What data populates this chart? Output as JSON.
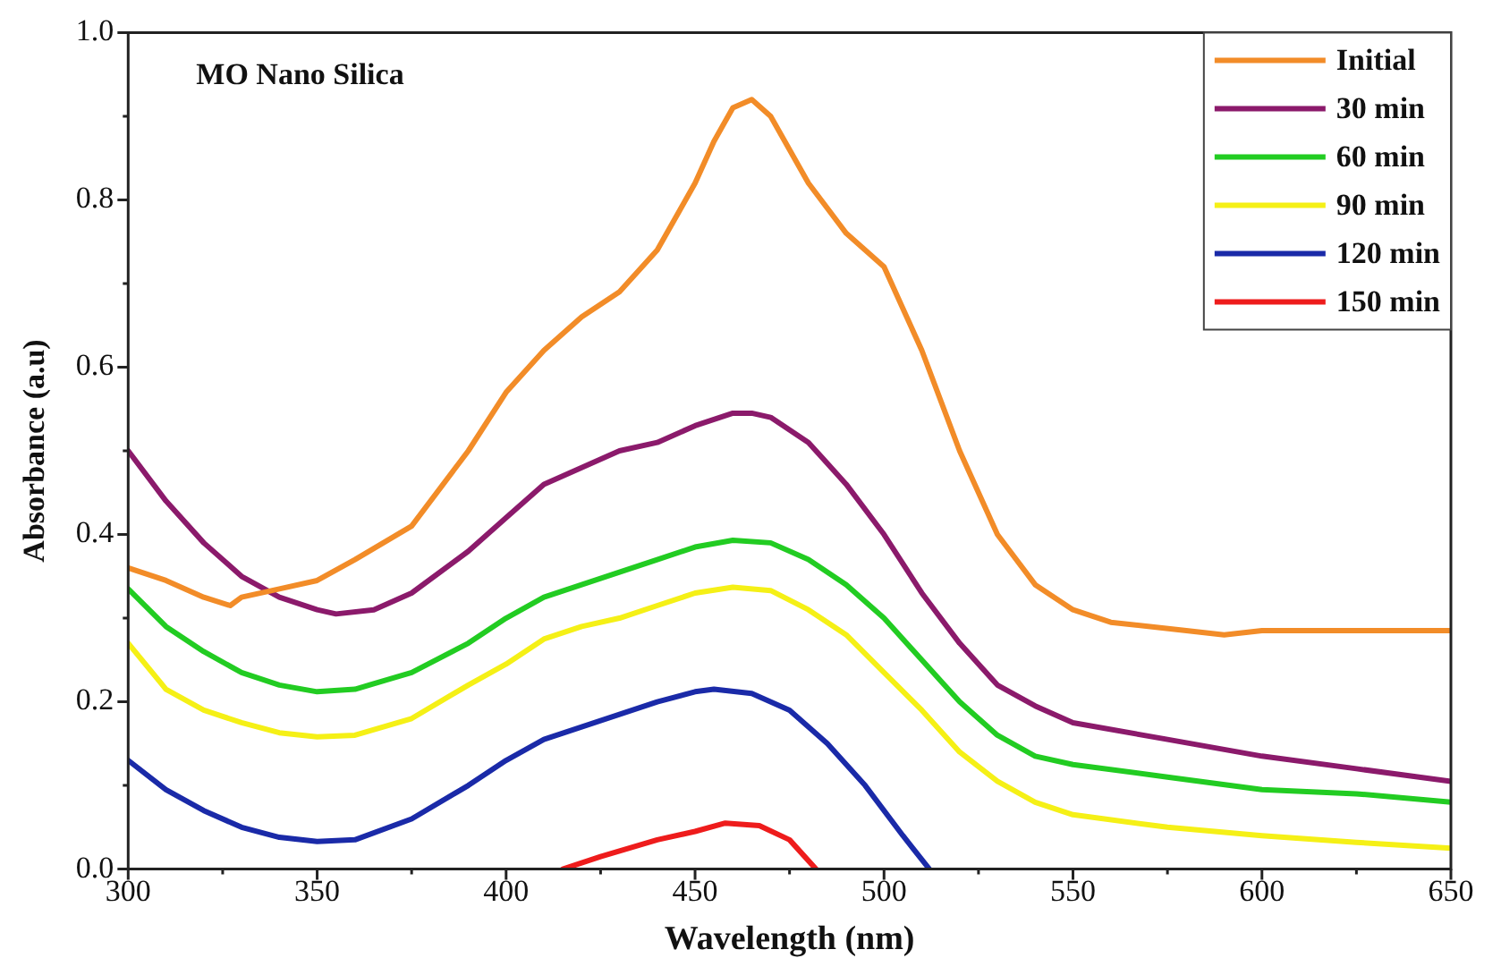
{
  "chart_data": {
    "type": "line",
    "xlabel": "Wavelength (nm)",
    "ylabel": "Absorbance (a.u)",
    "annotations": [
      "MO Nano Silica"
    ],
    "xlim": [
      300,
      650
    ],
    "xticks": [
      300,
      350,
      400,
      450,
      500,
      550,
      600,
      650
    ],
    "ylim": [
      0,
      1.0
    ],
    "yticks": [
      {
        "value": 0,
        "label": "0.0"
      },
      {
        "value": 0.2,
        "label": "0.2"
      },
      {
        "value": 0.4,
        "label": "0.4"
      },
      {
        "value": 0.6,
        "label": "0.6"
      },
      {
        "value": 0.8,
        "label": "0.8"
      },
      {
        "value": 1.0,
        "label": "1.0"
      }
    ],
    "grid": false,
    "legend": "top right",
    "marker": "none",
    "line_style": "solid",
    "series": [
      {
        "name": "Initial",
        "color": "#f28c28",
        "x": [
          300,
          310,
          320,
          327,
          330,
          340,
          350,
          360,
          375,
          390,
          400,
          410,
          420,
          430,
          440,
          450,
          455,
          460,
          465,
          470,
          480,
          490,
          500,
          505,
          510,
          520,
          530,
          540,
          550,
          560,
          580,
          590,
          600,
          625,
          650
        ],
        "values": [
          0.36,
          0.345,
          0.325,
          0.315,
          0.325,
          0.335,
          0.345,
          0.37,
          0.41,
          0.5,
          0.57,
          0.62,
          0.66,
          0.69,
          0.74,
          0.82,
          0.87,
          0.91,
          0.92,
          0.9,
          0.82,
          0.76,
          0.72,
          0.67,
          0.62,
          0.5,
          0.4,
          0.34,
          0.31,
          0.295,
          0.285,
          0.28,
          0.285,
          0.285,
          0.285
        ]
      },
      {
        "name": "30 min",
        "color": "#8b1a6b",
        "x": [
          300,
          310,
          320,
          330,
          340,
          350,
          355,
          365,
          375,
          390,
          400,
          410,
          420,
          430,
          440,
          450,
          460,
          465,
          470,
          480,
          490,
          500,
          510,
          520,
          530,
          540,
          550,
          575,
          600,
          625,
          650
        ],
        "values": [
          0.5,
          0.44,
          0.39,
          0.35,
          0.325,
          0.31,
          0.305,
          0.31,
          0.33,
          0.38,
          0.42,
          0.46,
          0.48,
          0.5,
          0.51,
          0.53,
          0.545,
          0.545,
          0.54,
          0.51,
          0.46,
          0.4,
          0.33,
          0.27,
          0.22,
          0.195,
          0.175,
          0.155,
          0.135,
          0.12,
          0.105
        ]
      },
      {
        "name": "60 min",
        "color": "#22cc22",
        "x": [
          300,
          310,
          320,
          330,
          340,
          350,
          360,
          375,
          390,
          400,
          410,
          420,
          430,
          440,
          450,
          460,
          470,
          480,
          490,
          500,
          510,
          520,
          530,
          540,
          550,
          575,
          600,
          625,
          650
        ],
        "values": [
          0.335,
          0.29,
          0.26,
          0.235,
          0.22,
          0.212,
          0.215,
          0.235,
          0.27,
          0.3,
          0.325,
          0.34,
          0.355,
          0.37,
          0.385,
          0.393,
          0.39,
          0.37,
          0.34,
          0.3,
          0.25,
          0.2,
          0.16,
          0.135,
          0.125,
          0.11,
          0.095,
          0.09,
          0.08
        ]
      },
      {
        "name": "90 min",
        "color": "#f5f016",
        "x": [
          300,
          310,
          320,
          330,
          340,
          350,
          360,
          375,
          390,
          400,
          410,
          420,
          430,
          440,
          450,
          460,
          470,
          480,
          490,
          500,
          510,
          520,
          530,
          540,
          550,
          575,
          600,
          625,
          650
        ],
        "values": [
          0.27,
          0.215,
          0.19,
          0.175,
          0.163,
          0.158,
          0.16,
          0.18,
          0.22,
          0.245,
          0.275,
          0.29,
          0.3,
          0.315,
          0.33,
          0.337,
          0.333,
          0.31,
          0.28,
          0.235,
          0.19,
          0.14,
          0.105,
          0.08,
          0.065,
          0.05,
          0.04,
          0.032,
          0.025
        ]
      },
      {
        "name": "120 min",
        "color": "#1a2aa8",
        "x": [
          300,
          310,
          320,
          330,
          340,
          350,
          360,
          375,
          390,
          400,
          410,
          420,
          430,
          440,
          450,
          455,
          465,
          475,
          485,
          495,
          505,
          512
        ],
        "values": [
          0.13,
          0.095,
          0.07,
          0.05,
          0.038,
          0.033,
          0.035,
          0.06,
          0.1,
          0.13,
          0.155,
          0.17,
          0.185,
          0.2,
          0.212,
          0.215,
          0.21,
          0.19,
          0.15,
          0.1,
          0.04,
          0.0
        ]
      },
      {
        "name": "150 min",
        "color": "#ee1c1c",
        "x": [
          415,
          425,
          440,
          450,
          458,
          467,
          475,
          482
        ],
        "values": [
          0.0,
          0.015,
          0.035,
          0.045,
          0.055,
          0.052,
          0.035,
          0.0
        ]
      }
    ]
  }
}
